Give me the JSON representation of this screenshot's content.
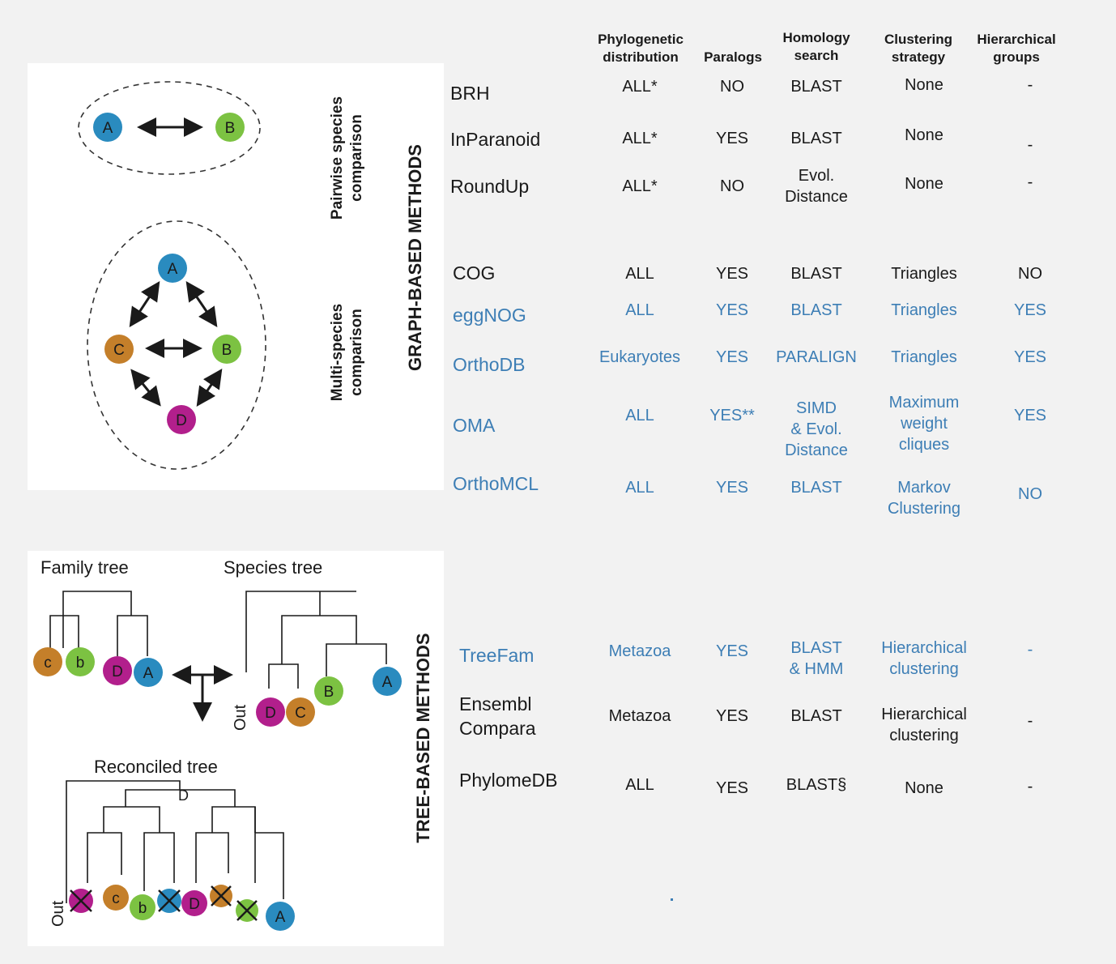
{
  "headers": [
    {
      "key": "phylo",
      "text": "Phylogenetic\ndistribution"
    },
    {
      "key": "paralogs",
      "text": "Paralogs"
    },
    {
      "key": "homology",
      "text": "Homology\nsearch"
    },
    {
      "key": "clustering",
      "text": "Clustering\nstrategy"
    },
    {
      "key": "hier",
      "text": "Hierarchical\ngroups"
    }
  ],
  "sections": {
    "graph": "GRAPH-BASED METHODS",
    "tree": "TREE-BASED METHODS",
    "pairwise": "Pairwise species\ncomparison",
    "multi": "Multi-species\ncomparison"
  },
  "tree_labels": {
    "family": "Family tree",
    "species": "Species tree",
    "reconciled": "Reconciled tree",
    "dup": "D",
    "out": "Out"
  },
  "nodes": {
    "A": "A",
    "B": "B",
    "C": "C",
    "D": "D",
    "c": "c",
    "b": "b"
  },
  "colors": {
    "A": "#2a8bbf",
    "B": "#7cc242",
    "C": "#c47f2a",
    "D": "#b21f8c",
    "method_blue": "#3d7eb5"
  },
  "rows": [
    {
      "name": "BRH",
      "color": "black",
      "phylo": "ALL*",
      "paralogs": "NO",
      "homology": "BLAST",
      "clustering": "None",
      "hier": "-"
    },
    {
      "name": "InParanoid",
      "color": "black",
      "phylo": "ALL*",
      "paralogs": "YES",
      "homology": "BLAST",
      "clustering": "None",
      "hier": "-"
    },
    {
      "name": "RoundUp",
      "color": "black",
      "phylo": "ALL*",
      "paralogs": "NO",
      "homology": "Evol.\nDistance",
      "clustering": "None",
      "hier": "-"
    },
    {
      "name": "COG",
      "color": "black",
      "phylo": "ALL",
      "paralogs": "YES",
      "homology": "BLAST",
      "clustering": "Triangles",
      "hier": "NO"
    },
    {
      "name": "eggNOG",
      "color": "blue",
      "phylo": "ALL",
      "paralogs": "YES",
      "homology": "BLAST",
      "clustering": "Triangles",
      "hier": "YES"
    },
    {
      "name": "OrthoDB",
      "color": "blue",
      "phylo": "Eukaryotes",
      "paralogs": "YES",
      "homology": "PARALIGN",
      "clustering": "Triangles",
      "hier": "YES"
    },
    {
      "name": "OMA",
      "color": "blue",
      "phylo": "ALL",
      "paralogs": "YES**",
      "homology": "SIMD\n& Evol.\nDistance",
      "clustering": "Maximum\nweight\ncliques",
      "hier": "YES"
    },
    {
      "name": "OrthoMCL",
      "color": "blue",
      "phylo": "ALL",
      "paralogs": "YES",
      "homology": "BLAST",
      "clustering": "Markov\nClustering",
      "hier": "NO"
    },
    {
      "name": "TreeFam",
      "color": "blue",
      "phylo": "Metazoa",
      "paralogs": "YES",
      "homology": "BLAST\n& HMM",
      "clustering": "Hierarchical\nclustering",
      "hier": "-"
    },
    {
      "name": "Ensembl\nCompara",
      "color": "black",
      "phylo": "Metazoa",
      "paralogs": "YES",
      "homology": "BLAST",
      "clustering": "Hierarchical\nclustering",
      "hier": "-"
    },
    {
      "name": "PhylomeDB",
      "color": "black",
      "phylo": "ALL",
      "paralogs": "YES",
      "homology": "BLAST§",
      "clustering": "None",
      "hier": "-"
    }
  ]
}
